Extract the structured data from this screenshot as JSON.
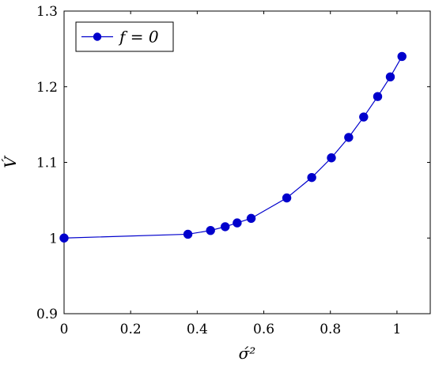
{
  "chart_data": {
    "type": "line",
    "xlabel": "σ́²",
    "ylabel": "V́",
    "xlim": [
      0,
      1.1
    ],
    "ylim": [
      0.9,
      1.3
    ],
    "xticks": [
      0,
      0.2,
      0.4,
      0.6,
      0.8,
      1
    ],
    "xtick_labels": [
      "0",
      "0.2",
      "0.4",
      "0.6",
      "0.8",
      "1"
    ],
    "yticks": [
      0.9,
      1,
      1.1,
      1.2,
      1.3
    ],
    "ytick_labels": [
      "0.9",
      "1",
      "1.1",
      "1.2",
      "1.3"
    ],
    "grid": false,
    "legend_position": "top-left",
    "series": [
      {
        "name": "f = 0",
        "color": "#0000cc",
        "marker": "circle",
        "x": [
          0,
          0.372,
          0.44,
          0.484,
          0.52,
          0.562,
          0.669,
          0.744,
          0.803,
          0.855,
          0.9,
          0.942,
          0.98,
          1.015
        ],
        "y": [
          1.0,
          1.005,
          1.01,
          1.015,
          1.02,
          1.026,
          1.053,
          1.08,
          1.106,
          1.133,
          1.16,
          1.187,
          1.213,
          1.24
        ]
      }
    ]
  }
}
